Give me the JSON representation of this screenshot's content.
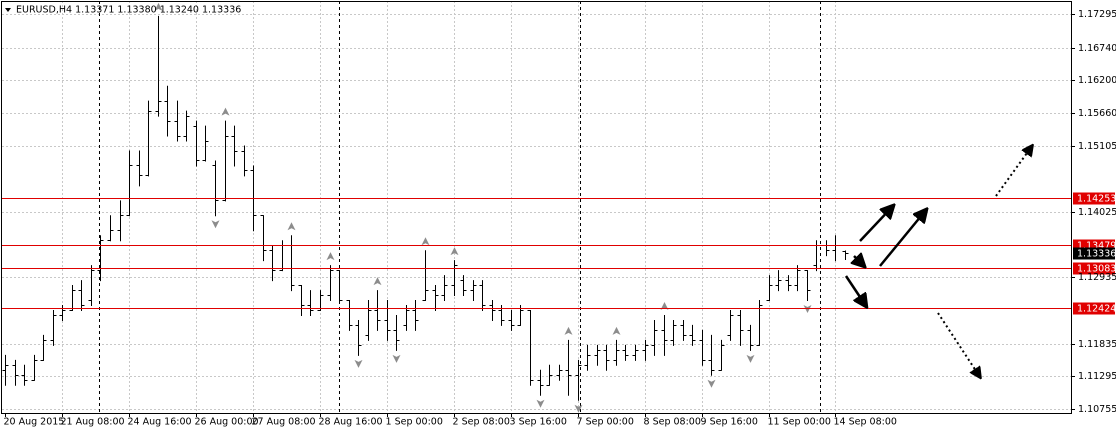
{
  "chart_data": {
    "type": "ohlc",
    "title": "EURUSD,H4  1.13371 1.13380 1.13240 1.13336",
    "x": [
      "20 Aug 2015",
      null,
      null,
      null,
      null,
      null,
      "21 Aug 08:00",
      null,
      null,
      null,
      null,
      null,
      null,
      "24 Aug 16:00",
      null,
      null,
      null,
      null,
      null,
      null,
      "26 Aug 00:00",
      null,
      null,
      null,
      null,
      null,
      "27 Aug 08:00",
      null,
      null,
      null,
      null,
      null,
      null,
      "28 Aug 16:00",
      null,
      null,
      null,
      null,
      null,
      null,
      "1 Sep 00:00",
      null,
      null,
      null,
      null,
      null,
      null,
      "2 Sep 08:00",
      null,
      null,
      null,
      null,
      null,
      "3 Sep 16:00",
      null,
      null,
      null,
      null,
      null,
      null,
      "7 Sep 00:00",
      null,
      null,
      null,
      null,
      null,
      null,
      "8 Sep 08:00",
      null,
      null,
      null,
      null,
      null,
      "9 Sep 16:00",
      null,
      null,
      null,
      null,
      null,
      null,
      "11 Sep 00:00",
      null,
      null,
      null,
      null,
      null,
      null,
      "14 Sep 08:00",
      null
    ],
    "open": [
      1.11405,
      1.11488,
      1.11323,
      1.1124,
      1.1157,
      1.119,
      1.12313,
      1.12395,
      1.12725,
      1.1256,
      1.13055,
      1.1355,
      1.13715,
      1.13963,
      1.14788,
      1.14623,
      1.15695,
      1.1586,
      1.1553,
      1.15283,
      1.15448,
      1.1487,
      1.14788,
      1.1421,
      1.15283,
      1.15035,
      1.14705,
      1.13963,
      1.13385,
      1.13055,
      1.13468,
      1.12808,
      1.12478,
      1.12395,
      1.12643,
      1.13055,
      1.1256,
      1.12148,
      1.11983,
      1.12395,
      1.1223,
      1.12065,
      1.12148,
      1.12395,
      1.1256,
      1.12725,
      1.12643,
      1.12808,
      1.1289,
      1.12725,
      1.12808,
      1.12478,
      1.12395,
      1.1223,
      1.12148,
      1.12395,
      1.1124,
      1.11158,
      1.11323,
      1.11405,
      1.11323,
      1.11488,
      1.11653,
      1.11735,
      1.1157,
      1.11735,
      1.11653,
      1.11735,
      1.11818,
      1.12065,
      1.119,
      1.12148,
      1.11983,
      1.119,
      1.1157,
      1.11405,
      1.11983,
      1.12313,
      1.12065,
      1.11818,
      1.1256,
      1.12808,
      1.1289,
      1.12808,
      1.13055,
      1.13138,
      1.13468,
      1.13385,
      1.13371
    ],
    "high": [
      1.11653,
      1.1157,
      1.11488,
      1.11653,
      1.11983,
      1.12395,
      1.12478,
      1.12808,
      1.1289,
      1.13138,
      1.13633,
      1.13963,
      1.1421,
      1.15035,
      1.15035,
      1.1586,
      1.17263,
      1.16108,
      1.1586,
      1.15695,
      1.1553,
      1.15448,
      1.1487,
      1.1553,
      1.15448,
      1.15118,
      1.14788,
      1.13963,
      1.13468,
      1.1355,
      1.13633,
      1.12808,
      1.12725,
      1.12725,
      1.13138,
      1.13055,
      1.1256,
      1.1223,
      1.1256,
      1.12725,
      1.1256,
      1.12313,
      1.12478,
      1.1256,
      1.13385,
      1.12808,
      1.12973,
      1.1322,
      1.12973,
      1.1289,
      1.1289,
      1.1256,
      1.12478,
      1.12395,
      1.12478,
      1.12395,
      1.11405,
      1.11488,
      1.11488,
      1.119,
      1.1157,
      1.11818,
      1.11818,
      1.11818,
      1.119,
      1.11818,
      1.11818,
      1.119,
      1.1223,
      1.12313,
      1.1223,
      1.1223,
      1.12148,
      1.12065,
      1.11983,
      1.119,
      1.12395,
      1.12395,
      1.12148,
      1.1256,
      1.12973,
      1.13055,
      1.12973,
      1.13138,
      1.13055,
      1.1355,
      1.1355,
      1.13633,
      1.1338
    ],
    "low": [
      1.11158,
      1.11158,
      1.11158,
      1.1124,
      1.1157,
      1.11818,
      1.1223,
      1.12395,
      1.12395,
      1.12478,
      1.1289,
      1.1355,
      1.1355,
      1.13963,
      1.14458,
      1.14623,
      1.15613,
      1.15283,
      1.152,
      1.152,
      1.14788,
      1.1487,
      1.13963,
      1.1421,
      1.14788,
      1.14623,
      1.13715,
      1.1322,
      1.1289,
      1.13055,
      1.12725,
      1.12313,
      1.12313,
      1.12395,
      1.1256,
      1.1256,
      1.12065,
      1.11653,
      1.119,
      1.12065,
      1.119,
      1.11735,
      1.12065,
      1.12065,
      1.1256,
      1.12395,
      1.1256,
      1.12643,
      1.12643,
      1.1256,
      1.12395,
      1.1223,
      1.12148,
      1.12065,
      1.12148,
      1.11158,
      1.10993,
      1.11158,
      1.1124,
      1.10993,
      1.1091,
      1.11405,
      1.11488,
      1.11405,
      1.11488,
      1.1157,
      1.1157,
      1.1157,
      1.11653,
      1.11653,
      1.11818,
      1.119,
      1.11818,
      1.11488,
      1.11323,
      1.11405,
      1.119,
      1.11818,
      1.11735,
      1.11818,
      1.1256,
      1.12725,
      1.12725,
      1.12725,
      1.1256,
      1.13055,
      1.13303,
      1.1322,
      1.1324
    ],
    "close": [
      1.11488,
      1.11323,
      1.1124,
      1.1157,
      1.119,
      1.12313,
      1.12395,
      1.12725,
      1.12478,
      1.13055,
      1.1355,
      1.13715,
      1.13963,
      1.14788,
      1.14623,
      1.15695,
      1.1586,
      1.1553,
      1.15283,
      1.15613,
      1.1487,
      1.152,
      1.1421,
      1.15283,
      1.15035,
      1.14705,
      1.13963,
      1.13385,
      1.13055,
      1.13468,
      1.12808,
      1.12478,
      1.12395,
      1.12643,
      1.13055,
      1.1256,
      1.12148,
      1.11818,
      1.12395,
      1.1223,
      1.12065,
      1.119,
      1.12395,
      1.1223,
      1.12725,
      1.12643,
      1.12808,
      1.13138,
      1.12725,
      1.12808,
      1.12478,
      1.12395,
      1.1223,
      1.12148,
      1.12395,
      1.1124,
      1.11158,
      1.11323,
      1.11405,
      1.11323,
      1.11488,
      1.11653,
      1.11735,
      1.1157,
      1.11735,
      1.11653,
      1.11735,
      1.11818,
      1.12065,
      1.119,
      1.12148,
      1.11983,
      1.119,
      1.1157,
      1.11405,
      1.11818,
      1.12313,
      1.12065,
      1.11818,
      1.12478,
      1.12808,
      1.1289,
      1.12808,
      1.13055,
      1.12725,
      1.13468,
      1.13385,
      1.13468,
      1.13336
    ],
    "ylim": [
      1.1069,
      1.1751
    ],
    "yticks": [
      1.17295,
      {
        "value": 1.1674,
        "label": "1.16740"
      },
      {
        "value": 1.162,
        "label": "1.16200"
      },
      {
        "value": 1.1566,
        "label": "1.15660"
      },
      1.15105,
      1.14025,
      1.12935,
      1.11835,
      1.11295,
      1.10755
    ],
    "hlines": [
      1.14253,
      1.13479,
      1.13083,
      1.12424
    ],
    "current_price": 1.13336,
    "bar_color": "#000000",
    "line_color": "#e00000",
    "fractal_color": "#8c8c8c",
    "grid": true,
    "fractals": true
  }
}
